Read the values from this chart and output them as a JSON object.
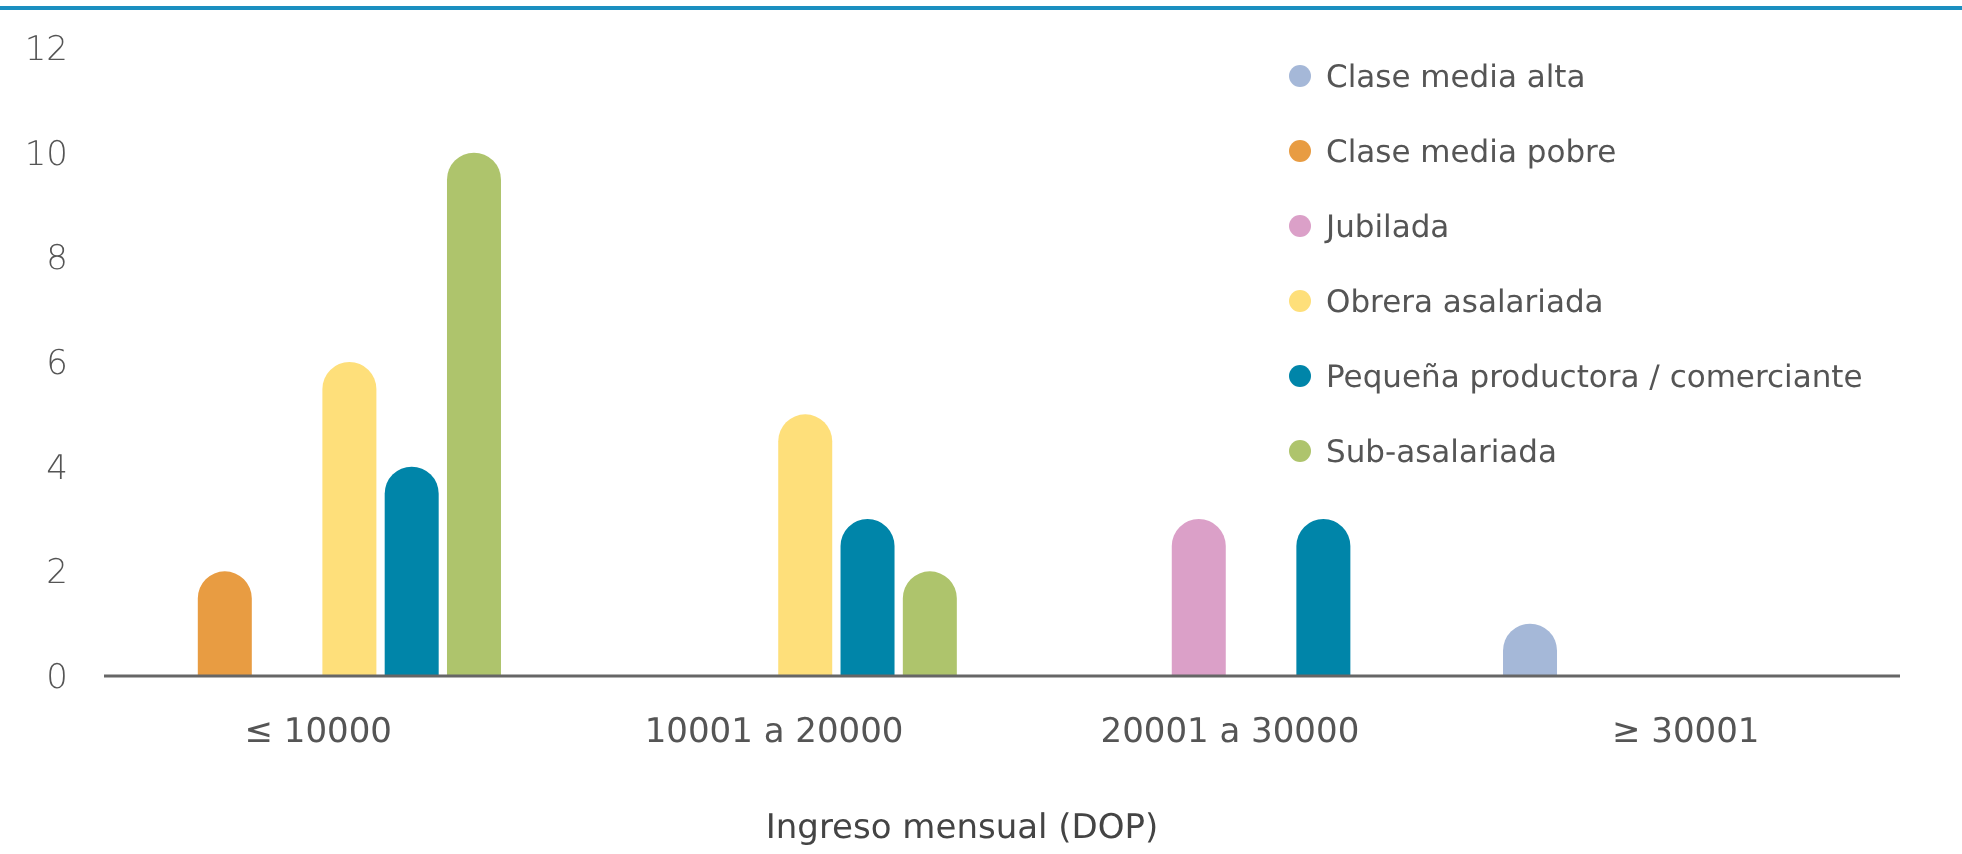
{
  "chart_data": {
    "type": "bar",
    "xlabel": "Ingreso mensual (DOP)",
    "categories": [
      "≤ 10000",
      "10001 a 20000",
      "20001 a 30000",
      "≥ 30001"
    ],
    "series": [
      {
        "name": "Clase media alta",
        "color": "#a5b8d8",
        "values": [
          null,
          null,
          null,
          1
        ]
      },
      {
        "name": "Clase media pobre",
        "color": "#e89c42",
        "values": [
          2,
          null,
          null,
          null
        ]
      },
      {
        "name": "Jubilada",
        "color": "#dba0c8",
        "values": [
          null,
          null,
          3,
          null
        ]
      },
      {
        "name": "Obrera asalariada",
        "color": "#fedf7a",
        "values": [
          6,
          5,
          null,
          null
        ]
      },
      {
        "name": "Pequeña productora / comerciante",
        "color": "#0085a9",
        "values": [
          4,
          3,
          3,
          null
        ]
      },
      {
        "name": "Sub-asalariada",
        "color": "#aec46c",
        "values": [
          10,
          2,
          null,
          null
        ]
      }
    ],
    "ylim": [
      0,
      12
    ],
    "yticks": [
      0,
      2,
      4,
      6,
      8,
      10,
      12
    ],
    "grid": false,
    "legend": "top right"
  }
}
